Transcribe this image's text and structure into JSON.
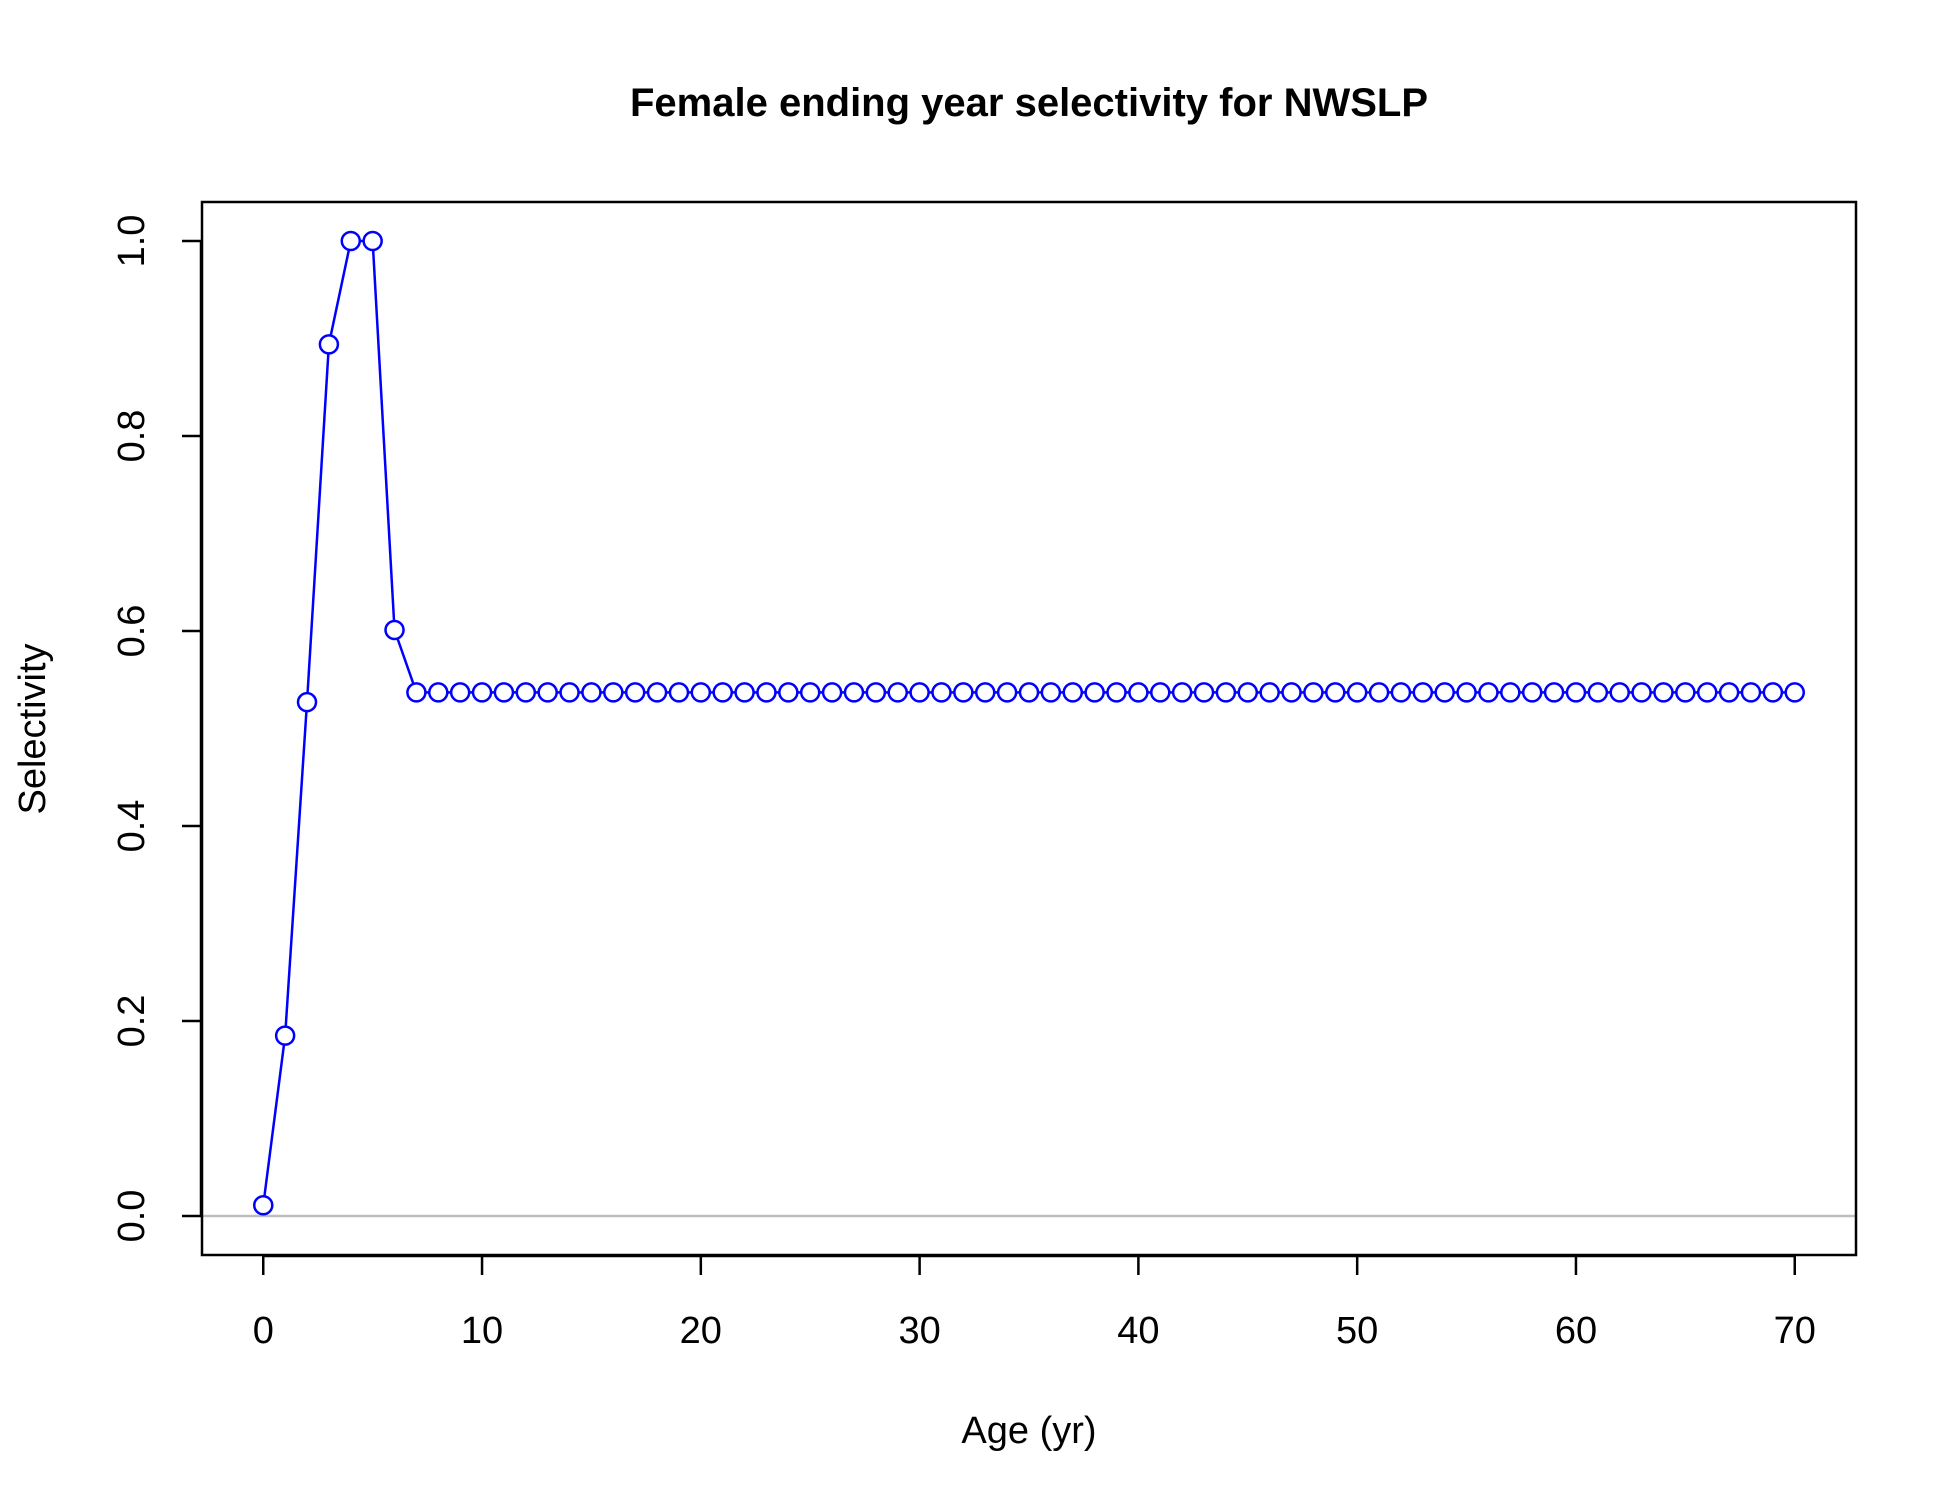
{
  "chart_data": {
    "type": "line",
    "title": "Female ending year selectivity for NWSLP",
    "xlabel": "Age (yr)",
    "ylabel": "Selectivity",
    "xlim": [
      -2.8,
      72.8
    ],
    "ylim": [
      -0.04,
      1.04
    ],
    "xticks": [
      0,
      10,
      20,
      30,
      40,
      50,
      60,
      70
    ],
    "xtick_labels": [
      "0",
      "10",
      "20",
      "30",
      "40",
      "50",
      "60",
      "70"
    ],
    "yticks": [
      0.0,
      0.2,
      0.4,
      0.6,
      0.8,
      1.0
    ],
    "ytick_labels": [
      "0.0",
      "0.2",
      "0.4",
      "0.6",
      "0.8",
      "1.0"
    ],
    "grid": false,
    "reference_line": {
      "y": 0,
      "color": "#bebebe"
    },
    "series": [
      {
        "color": "#0000ff",
        "marker": "open-circle",
        "x": [
          0,
          1,
          2,
          3,
          4,
          5,
          6,
          7,
          8,
          9,
          10,
          11,
          12,
          13,
          14,
          15,
          16,
          17,
          18,
          19,
          20,
          21,
          22,
          23,
          24,
          25,
          26,
          27,
          28,
          29,
          30,
          31,
          32,
          33,
          34,
          35,
          36,
          37,
          38,
          39,
          40,
          41,
          42,
          43,
          44,
          45,
          46,
          47,
          48,
          49,
          50,
          51,
          52,
          53,
          54,
          55,
          56,
          57,
          58,
          59,
          60,
          61,
          62,
          63,
          64,
          65,
          66,
          67,
          68,
          69,
          70
        ],
        "y": [
          0.011,
          0.185,
          0.527,
          0.894,
          1.0,
          1.0,
          0.601,
          0.537,
          0.537,
          0.537,
          0.537,
          0.537,
          0.537,
          0.537,
          0.537,
          0.537,
          0.537,
          0.537,
          0.537,
          0.537,
          0.537,
          0.537,
          0.537,
          0.537,
          0.537,
          0.537,
          0.537,
          0.537,
          0.537,
          0.537,
          0.537,
          0.537,
          0.537,
          0.537,
          0.537,
          0.537,
          0.537,
          0.537,
          0.537,
          0.537,
          0.537,
          0.537,
          0.537,
          0.537,
          0.537,
          0.537,
          0.537,
          0.537,
          0.537,
          0.537,
          0.537,
          0.537,
          0.537,
          0.537,
          0.537,
          0.537,
          0.537,
          0.537,
          0.537,
          0.537,
          0.537,
          0.537,
          0.537,
          0.537,
          0.537,
          0.537,
          0.537,
          0.537,
          0.537,
          0.537,
          0.537
        ]
      }
    ]
  }
}
